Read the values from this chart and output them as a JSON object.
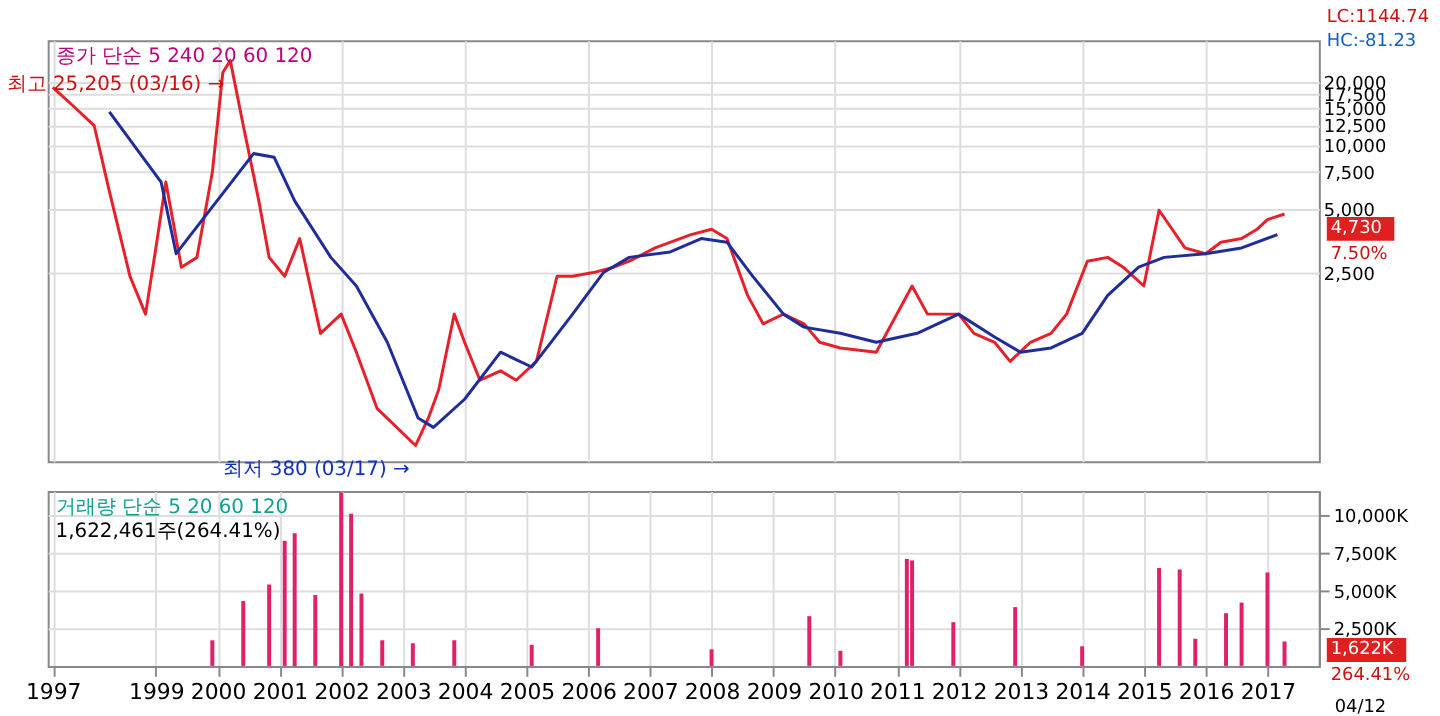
{
  "chart_data": [
    {
      "type": "line",
      "log": true,
      "grid": true,
      "tick_labels": "y",
      "xlim": [
        "1997-04",
        "2017-11"
      ],
      "xticks": [
        {
          "value": "1997-05",
          "label": null
        },
        "1999",
        "2000",
        "2001",
        "2002",
        "2003",
        "2004",
        "2005",
        "2006",
        "2007",
        "2008",
        "2009",
        "2010",
        "2011",
        "2012",
        "2013",
        "2014",
        "2015",
        "2016",
        "2017"
      ],
      "ylim": [
        320,
        31400
      ],
      "yticks": [
        {
          "value": 2500,
          "label": "2,500"
        },
        {
          "value": 5000,
          "label": "5,000"
        },
        {
          "value": 7500,
          "label": "7,500"
        },
        {
          "value": 10000,
          "label": "10,000"
        },
        {
          "value": 12500,
          "label": "12,500"
        },
        {
          "value": 15000,
          "label": "15,000"
        },
        {
          "value": 17500,
          "label": "17,500"
        },
        {
          "value": 20000,
          "label": "20,000"
        }
      ],
      "series": [
        {
          "color": "#e8202a",
          "x": [
            "1997-05",
            "1997-09",
            "1998-01",
            "1998-04",
            "1998-08",
            "1998-11",
            "1999-01",
            "1999-03",
            "1999-06",
            "1999-09",
            "1999-12",
            "2000-02",
            "2000-03-16",
            "2000-06",
            "2000-09",
            "2000-11",
            "2001-02",
            "2001-05",
            "2001-09",
            "2002-01",
            "2002-04",
            "2002-08",
            "2003-03-17",
            "2003-06",
            "2003-08",
            "2003-11",
            "2004-01",
            "2004-04",
            "2004-08",
            "2004-11",
            "2005-03",
            "2005-07",
            "2005-10",
            "2006-02",
            "2006-06",
            "2006-09",
            "2007-02",
            "2007-09",
            "2008-01",
            "2008-04",
            "2008-08",
            "2008-11",
            "2009-03",
            "2009-07",
            "2009-10",
            "2010-02",
            "2010-09",
            "2011-04",
            "2011-07",
            "2012-01",
            "2012-04",
            "2012-08",
            "2012-11",
            "2013-03",
            "2013-07",
            "2013-10",
            "2014-02",
            "2014-06",
            "2014-09",
            "2015-01",
            "2015-04",
            "2015-09",
            "2016-01",
            "2016-04",
            "2016-08",
            "2016-11",
            "2017-01",
            "2017-04-12"
          ],
          "values": [
            18800,
            15300,
            12400,
            6050,
            2400,
            1590,
            3270,
            6700,
            2650,
            2950,
            7450,
            22100,
            25205,
            12400,
            5460,
            2950,
            2400,
            3620,
            1290,
            1590,
            1050,
            570,
            380,
            513,
            698,
            1590,
            1170,
            774,
            857,
            774,
            950,
            2400,
            2400,
            2500,
            2650,
            2830,
            3270,
            3780,
            4010,
            3620,
            1950,
            1430,
            1590,
            1430,
            1170,
            1100,
            1050,
            2160,
            1590,
            1590,
            1290,
            1170,
            950,
            1170,
            1290,
            1590,
            2830,
            2950,
            2650,
            2160,
            4930,
            3270,
            3070,
            3480,
            3620,
            4010,
            4450,
            4730
          ]
        },
        {
          "color": "#1f2d9b",
          "x": [
            "1998-04",
            "1999-02",
            "1999-05",
            "2000-08",
            "2000-12",
            "2001-04",
            "2001-11",
            "2002-04",
            "2002-10",
            "2003-04",
            "2003-07",
            "2004-01",
            "2004-08",
            "2005-02",
            "2005-05",
            "2005-10",
            "2006-04",
            "2006-09",
            "2007-05",
            "2007-11",
            "2008-04",
            "2008-09",
            "2009-03",
            "2009-07",
            "2010-02",
            "2010-09",
            "2011-05",
            "2012-01",
            "2012-08",
            "2013-01",
            "2013-07",
            "2014-01",
            "2014-06",
            "2014-12",
            "2015-05",
            "2016-01",
            "2016-08",
            "2017-03"
          ],
          "values": [
            14400,
            6700,
            3070,
            9140,
            8770,
            5460,
            2950,
            2160,
            1170,
            513,
            463,
            629,
            1050,
            894,
            1100,
            1590,
            2500,
            2950,
            3130,
            3620,
            3480,
            2400,
            1590,
            1380,
            1290,
            1170,
            1290,
            1590,
            1240,
            1050,
            1100,
            1290,
            1950,
            2650,
            2950,
            3070,
            3270,
            3780
          ]
        }
      ],
      "annotations": [
        "종가 단순 5 240 20 60 120",
        {
          "text": "최고 25,205 (03/16) →",
          "x": "2000-03-16",
          "y": 25205
        },
        {
          "text": "최저 380 (03/17) →",
          "x": "2003-03-17",
          "y": 380
        },
        "LC:1144.74",
        "HC:-81.23",
        "4,730",
        "7.50%"
      ]
    },
    {
      "type": "bar",
      "grid": true,
      "xlim": [
        "1997-04",
        "2017-11"
      ],
      "xticks": [
        {
          "value": "1997-05",
          "label": "1997"
        },
        "1999",
        "2000",
        "2001",
        "2002",
        "2003",
        "2004",
        "2005",
        "2006",
        "2007",
        "2008",
        "2009",
        "2010",
        "2011",
        "2012",
        "2013",
        "2014",
        "2015",
        "2016",
        "2017"
      ],
      "ylim": [
        0,
        11600
      ],
      "yticks": [
        {
          "value": 2500,
          "label": "2,500K"
        },
        {
          "value": 5000,
          "label": "5,000K"
        },
        {
          "value": 7500,
          "label": "7,500K"
        },
        {
          "value": 10000,
          "label": "10,000K"
        }
      ],
      "series": [
        {
          "color": "#e0206a",
          "x": [
            "1999-12",
            "2000-06",
            "2000-11",
            "2001-02",
            "2001-04",
            "2001-08",
            "2002-01",
            "2002-03",
            "2002-05",
            "2002-09",
            "2003-03",
            "2003-11",
            "2005-02",
            "2006-03",
            "2008-01",
            "2009-08",
            "2010-02",
            "2011-03",
            "2011-04",
            "2011-12",
            "2012-12",
            "2014-01",
            "2015-04",
            "2015-08",
            "2015-11",
            "2016-05",
            "2016-08",
            "2017-01",
            "2017-04-12"
          ],
          "values": [
            1700,
            4300,
            5400,
            8300,
            8800,
            4700,
            11500,
            10100,
            4800,
            1700,
            1500,
            1700,
            1400,
            2500,
            1100,
            3300,
            1000,
            7100,
            7000,
            2900,
            3900,
            1300,
            6500,
            6400,
            1800,
            3500,
            4200,
            6200,
            1622
          ]
        }
      ],
      "annotations": [
        "거래량 단순 5 20 60 120",
        "1,622,461주(264.41%)",
        "1,622K",
        "264.41%",
        "04/12"
      ]
    }
  ]
}
